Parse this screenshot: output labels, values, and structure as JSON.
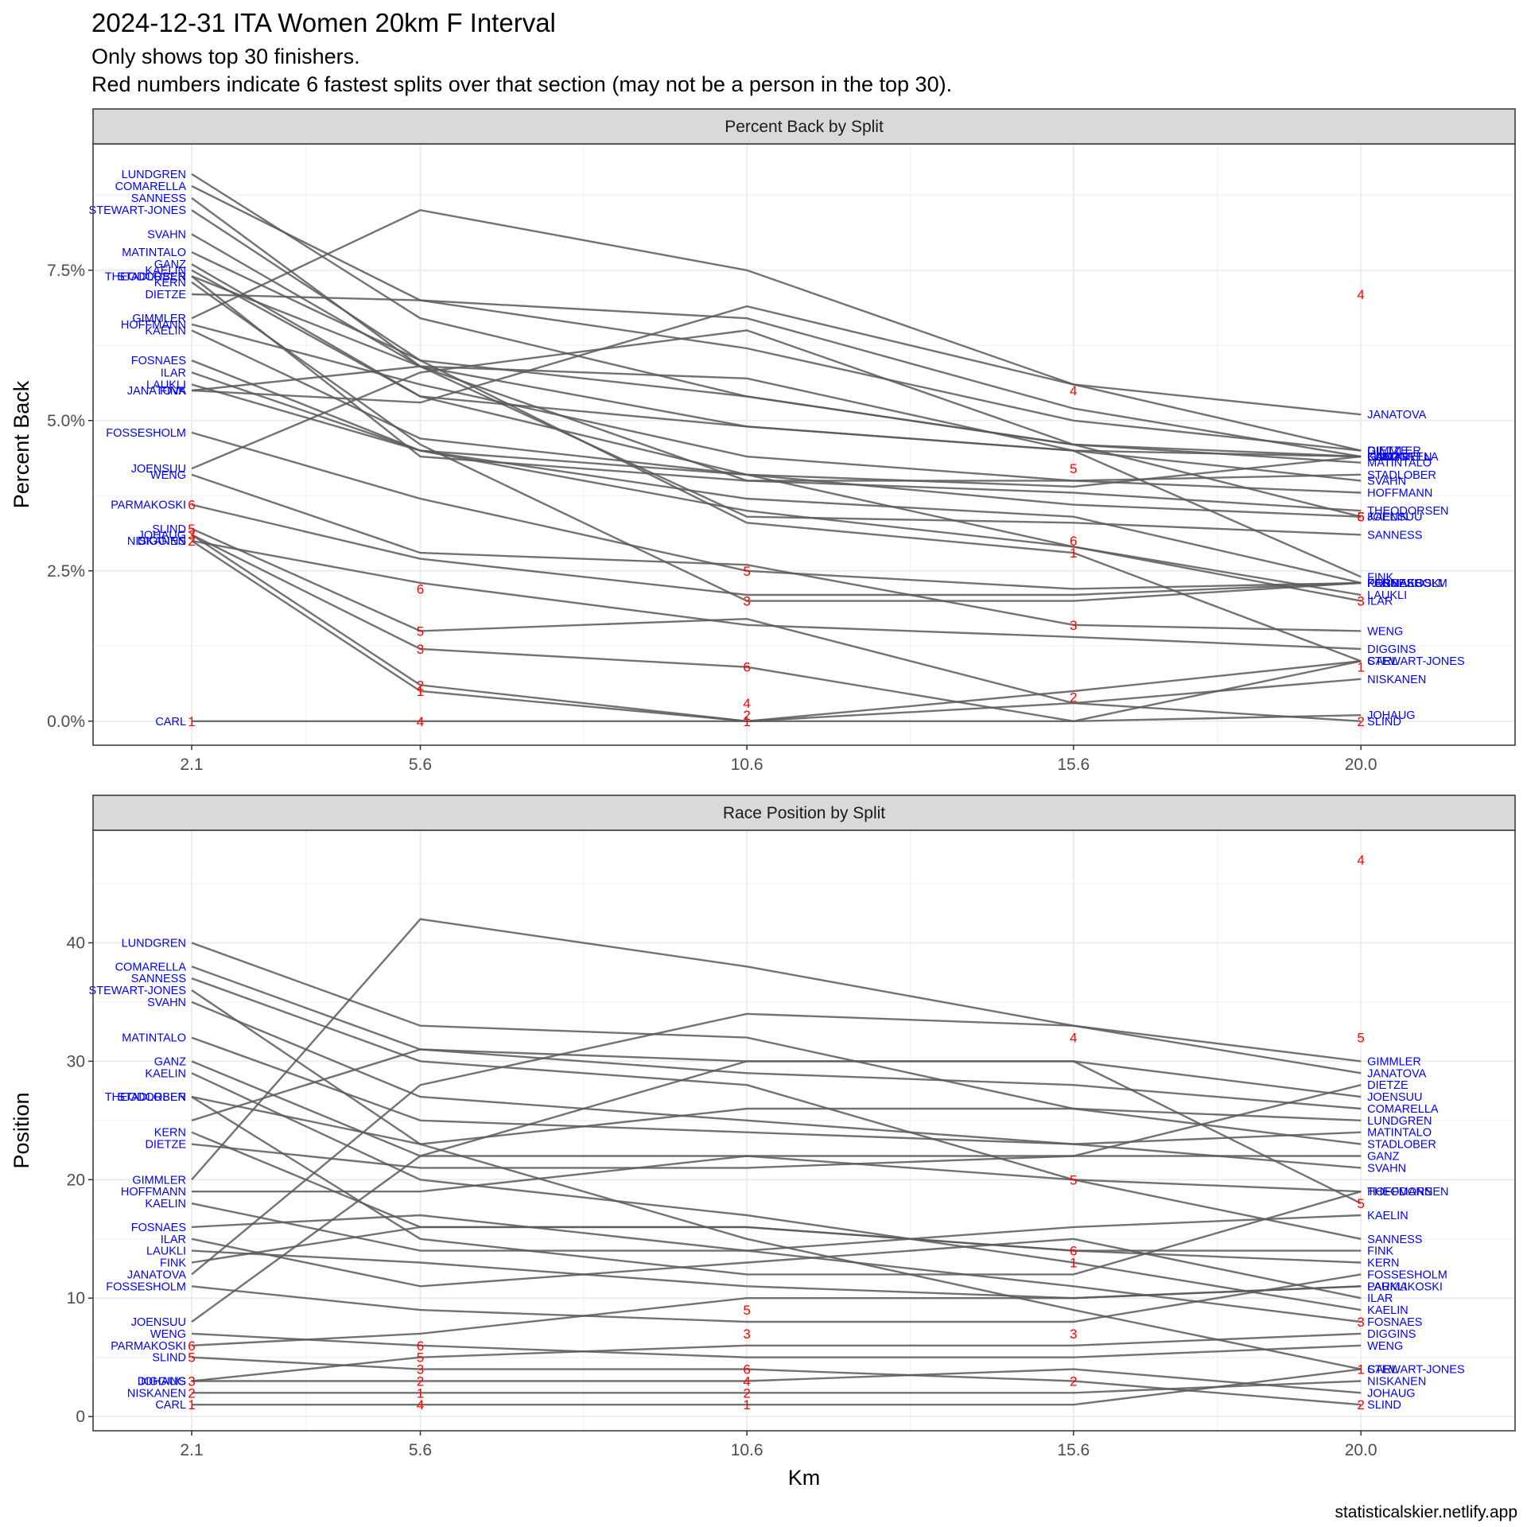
{
  "title": "2024-12-31 ITA Women 20km F Interval",
  "subtitle_lines": [
    "Only shows top 30 finishers.",
    "Red numbers indicate 6 fastest splits over that section (may not be a person in the top 30)."
  ],
  "caption": "statisticalskier.netlify.app",
  "colors": {
    "line": "#595959",
    "name_label": "#0000ff",
    "split_label": "#ff0000",
    "strip_bg": "#d9d9d9",
    "grid": "#ebebeb"
  },
  "chart_data": [
    {
      "type": "line",
      "title": "Percent Back by Split",
      "xlabel": "",
      "ylabel": "Percent Back",
      "x": [
        2.1,
        5.6,
        10.6,
        15.6,
        20.0
      ],
      "x_tick_labels": [
        "2.1",
        "5.6",
        "10.6",
        "15.6",
        "20.0"
      ],
      "y_ticks": [
        0,
        2.5,
        5.0,
        7.5
      ],
      "y_tick_labels": [
        "0.0%",
        "2.5%",
        "5.0%",
        "7.5%"
      ],
      "ylim": [
        -0.4,
        9.6
      ],
      "grid": true,
      "series": [
        {
          "name": "LUNDGREN",
          "values": [
            9.1,
            6.7,
            5.4,
            4.6,
            4.4
          ]
        },
        {
          "name": "COMARELLA",
          "values": [
            8.9,
            7.0,
            6.7,
            5.2,
            4.4
          ]
        },
        {
          "name": "SANNESS",
          "values": [
            8.7,
            5.9,
            3.4,
            3.3,
            3.1
          ]
        },
        {
          "name": "STEWART-JONES",
          "values": [
            8.5,
            6.0,
            3.3,
            2.8,
            1.0
          ]
        },
        {
          "name": "SVAHN",
          "values": [
            8.1,
            5.9,
            4.9,
            4.5,
            4.0
          ]
        },
        {
          "name": "MATINTALO",
          "values": [
            7.8,
            6.0,
            5.4,
            4.6,
            4.3
          ]
        },
        {
          "name": "GANZ",
          "values": [
            7.6,
            5.4,
            4.9,
            4.5,
            4.4
          ]
        },
        {
          "name": "KAELIN",
          "values": [
            7.5,
            5.4,
            4.1,
            3.6,
            3.4
          ]
        },
        {
          "name": "THEODORSEN",
          "values": [
            7.4,
            4.4,
            4.0,
            3.8,
            3.5
          ]
        },
        {
          "name": "STADLOBER",
          "values": [
            7.4,
            5.9,
            4.0,
            4.0,
            4.1
          ]
        },
        {
          "name": "KERN",
          "values": [
            7.3,
            4.6,
            2.0,
            2.0,
            2.3
          ]
        },
        {
          "name": "DIETZE",
          "values": [
            7.1,
            7.0,
            6.2,
            5.0,
            4.5
          ]
        },
        {
          "name": "GIMMLER",
          "values": [
            6.7,
            8.5,
            7.5,
            5.6,
            4.5
          ]
        },
        {
          "name": "HOFFMANN",
          "values": [
            6.6,
            5.6,
            4.4,
            4.0,
            3.8
          ]
        },
        {
          "name": "KAELIN",
          "values": [
            6.5,
            4.7,
            4.1,
            3.9,
            4.4
          ]
        },
        {
          "name": "FOSNAES",
          "values": [
            6.0,
            4.5,
            3.7,
            3.4,
            2.3
          ]
        },
        {
          "name": "ILAR",
          "values": [
            5.8,
            4.5,
            4.1,
            2.9,
            2.0
          ]
        },
        {
          "name": "LAUKLI",
          "values": [
            5.6,
            4.5,
            3.5,
            2.9,
            2.1
          ]
        },
        {
          "name": "FINK",
          "values": [
            5.5,
            5.9,
            5.7,
            4.5,
            2.4
          ]
        },
        {
          "name": "JANATOVA",
          "values": [
            5.5,
            5.3,
            6.9,
            5.6,
            5.1
          ]
        },
        {
          "name": "FOSSESHOLM",
          "values": [
            4.8,
            3.7,
            2.5,
            2.2,
            2.3
          ]
        },
        {
          "name": "JOENSUU",
          "values": [
            4.2,
            5.8,
            6.5,
            4.6,
            3.4
          ]
        },
        {
          "name": "WENG",
          "values": [
            4.1,
            2.8,
            2.6,
            1.6,
            1.5
          ]
        },
        {
          "name": "PARMAKOSKI",
          "values": [
            3.6,
            2.7,
            2.1,
            2.1,
            2.3
          ]
        },
        {
          "name": "SLIND",
          "values": [
            3.2,
            1.5,
            1.7,
            0.3,
            0.0
          ]
        },
        {
          "name": "JOHAUG",
          "values": [
            3.1,
            1.2,
            0.9,
            0.0,
            0.1
          ]
        },
        {
          "name": "DIGGINS",
          "values": [
            3.0,
            2.3,
            1.6,
            1.4,
            1.2
          ]
        },
        {
          "name": "NISKANEN",
          "values": [
            3.0,
            0.5,
            0.0,
            0.3,
            0.7
          ]
        },
        {
          "name": "CARL",
          "values": [
            0.0,
            0.0,
            0.0,
            0.0,
            1.0
          ]
        },
        {
          "name": "",
          "values": [
            3.1,
            0.6,
            0.0,
            0.5,
            1.0
          ]
        }
      ],
      "split_labels": [
        {
          "x": 2.1,
          "y": 0.0,
          "label": "1"
        },
        {
          "x": 2.1,
          "y": 3.2,
          "label": "5"
        },
        {
          "x": 2.1,
          "y": 3.1,
          "label": "3"
        },
        {
          "x": 2.1,
          "y": 3.0,
          "label": "2"
        },
        {
          "x": 2.1,
          "y": 3.6,
          "label": "6"
        },
        {
          "x": 5.6,
          "y": 0.0,
          "label": "4"
        },
        {
          "x": 5.6,
          "y": 0.6,
          "label": "2"
        },
        {
          "x": 5.6,
          "y": 0.5,
          "label": "1"
        },
        {
          "x": 5.6,
          "y": 1.2,
          "label": "3"
        },
        {
          "x": 5.6,
          "y": 1.5,
          "label": "5"
        },
        {
          "x": 5.6,
          "y": 2.2,
          "label": "6"
        },
        {
          "x": 10.6,
          "y": 0.0,
          "label": "1"
        },
        {
          "x": 10.6,
          "y": 0.1,
          "label": "2"
        },
        {
          "x": 10.6,
          "y": 0.3,
          "label": "4"
        },
        {
          "x": 10.6,
          "y": 0.9,
          "label": "6"
        },
        {
          "x": 10.6,
          "y": 2.0,
          "label": "3"
        },
        {
          "x": 10.6,
          "y": 2.5,
          "label": "5"
        },
        {
          "x": 15.6,
          "y": 0.4,
          "label": "2"
        },
        {
          "x": 15.6,
          "y": 1.6,
          "label": "3"
        },
        {
          "x": 15.6,
          "y": 2.8,
          "label": "1"
        },
        {
          "x": 15.6,
          "y": 3.0,
          "label": "6"
        },
        {
          "x": 15.6,
          "y": 4.2,
          "label": "5"
        },
        {
          "x": 15.6,
          "y": 5.5,
          "label": "4"
        },
        {
          "x": 20.0,
          "y": 0.0,
          "label": "2"
        },
        {
          "x": 20.0,
          "y": 0.9,
          "label": "1"
        },
        {
          "x": 20.0,
          "y": 2.0,
          "label": "3"
        },
        {
          "x": 20.0,
          "y": 3.4,
          "label": "6"
        },
        {
          "x": 20.0,
          "y": 3.4,
          "label": "5"
        },
        {
          "x": 20.0,
          "y": 7.1,
          "label": "4"
        }
      ]
    },
    {
      "type": "line",
      "title": "Race Position by Split",
      "xlabel": "Km",
      "ylabel": "Position",
      "x": [
        2.1,
        5.6,
        10.6,
        15.6,
        20.0
      ],
      "x_tick_labels": [
        "2.1",
        "5.6",
        "10.6",
        "15.6",
        "20.0"
      ],
      "y_ticks": [
        0,
        10,
        20,
        30,
        40
      ],
      "y_tick_labels": [
        "0",
        "10",
        "20",
        "30",
        "40"
      ],
      "ylim": [
        -1.2,
        49.5
      ],
      "grid": true,
      "series": [
        {
          "name": "LUNDGREN",
          "values": [
            40,
            33,
            32,
            26,
            25
          ]
        },
        {
          "name": "COMARELLA",
          "values": [
            38,
            31,
            29,
            28,
            26
          ]
        },
        {
          "name": "SANNESS",
          "values": [
            37,
            30,
            28,
            20,
            15
          ]
        },
        {
          "name": "STEWART-JONES",
          "values": [
            36,
            23,
            15,
            9,
            4
          ]
        },
        {
          "name": "SVAHN",
          "values": [
            35,
            27,
            25,
            23,
            21
          ]
        },
        {
          "name": "MATINTALO",
          "values": [
            32,
            25,
            24,
            23,
            24
          ]
        },
        {
          "name": "GANZ",
          "values": [
            30,
            22,
            22,
            22,
            22
          ]
        },
        {
          "name": "KAELIN",
          "values": [
            29,
            20,
            17,
            13,
            9
          ]
        },
        {
          "name": "THEODORSEN",
          "values": [
            27,
            15,
            12,
            12,
            19
          ]
        },
        {
          "name": "STADLOBER",
          "values": [
            27,
            23,
            26,
            26,
            23
          ]
        },
        {
          "name": "KERN",
          "values": [
            24,
            16,
            16,
            14,
            13
          ]
        },
        {
          "name": "DIETZE",
          "values": [
            23,
            21,
            21,
            22,
            28
          ]
        },
        {
          "name": "GIMMLER",
          "values": [
            20,
            42,
            38,
            33,
            30
          ]
        },
        {
          "name": "HOFFMANN",
          "values": [
            19,
            19,
            22,
            20,
            19
          ]
        },
        {
          "name": "KAELIN",
          "values": [
            18,
            14,
            14,
            16,
            17
          ]
        },
        {
          "name": "FOSNAES",
          "values": [
            16,
            17,
            14,
            11,
            8
          ]
        },
        {
          "name": "ILAR",
          "values": [
            15,
            11,
            13,
            15,
            10
          ]
        },
        {
          "name": "LAUKLI",
          "values": [
            14,
            13,
            11,
            10,
            11
          ]
        },
        {
          "name": "FINK",
          "values": [
            13,
            16,
            16,
            14,
            14
          ]
        },
        {
          "name": "JANATOVA",
          "values": [
            12,
            28,
            34,
            33,
            29
          ]
        },
        {
          "name": "FOSSESHOLM",
          "values": [
            11,
            9,
            8,
            8,
            12
          ]
        },
        {
          "name": "JOENSUU",
          "values": [
            8,
            22,
            30,
            30,
            27
          ]
        },
        {
          "name": "WENG",
          "values": [
            7,
            6,
            5,
            5,
            6
          ]
        },
        {
          "name": "PARMAKOSKI",
          "values": [
            6,
            7,
            10,
            10,
            11
          ]
        },
        {
          "name": "SLIND",
          "values": [
            5,
            4,
            4,
            3,
            1
          ]
        },
        {
          "name": "JOHAUG",
          "values": [
            3,
            3,
            3,
            4,
            2
          ]
        },
        {
          "name": "DIGGINS",
          "values": [
            3,
            5,
            6,
            6,
            7
          ]
        },
        {
          "name": "NISKANEN",
          "values": [
            2,
            2,
            2,
            2,
            3
          ]
        },
        {
          "name": "CARL",
          "values": [
            1,
            1,
            1,
            1,
            4
          ]
        },
        {
          "name": "",
          "values": [
            25,
            31,
            30,
            30,
            18
          ]
        }
      ],
      "split_labels": [
        {
          "x": 2.1,
          "y": 1,
          "label": "1"
        },
        {
          "x": 2.1,
          "y": 2,
          "label": "2"
        },
        {
          "x": 2.1,
          "y": 3,
          "label": "3"
        },
        {
          "x": 2.1,
          "y": 5,
          "label": "5"
        },
        {
          "x": 2.1,
          "y": 6,
          "label": "6"
        },
        {
          "x": 5.6,
          "y": 1,
          "label": "4"
        },
        {
          "x": 5.6,
          "y": 2,
          "label": "1"
        },
        {
          "x": 5.6,
          "y": 3,
          "label": "2"
        },
        {
          "x": 5.6,
          "y": 4,
          "label": "3"
        },
        {
          "x": 5.6,
          "y": 5,
          "label": "5"
        },
        {
          "x": 5.6,
          "y": 6,
          "label": "6"
        },
        {
          "x": 10.6,
          "y": 1,
          "label": "1"
        },
        {
          "x": 10.6,
          "y": 2,
          "label": "2"
        },
        {
          "x": 10.6,
          "y": 3,
          "label": "4"
        },
        {
          "x": 10.6,
          "y": 4,
          "label": "6"
        },
        {
          "x": 10.6,
          "y": 7,
          "label": "3"
        },
        {
          "x": 10.6,
          "y": 9,
          "label": "5"
        },
        {
          "x": 15.6,
          "y": 3,
          "label": "2"
        },
        {
          "x": 15.6,
          "y": 7,
          "label": "3"
        },
        {
          "x": 15.6,
          "y": 13,
          "label": "1"
        },
        {
          "x": 15.6,
          "y": 14,
          "label": "6"
        },
        {
          "x": 15.6,
          "y": 20,
          "label": "5"
        },
        {
          "x": 15.6,
          "y": 32,
          "label": "4"
        },
        {
          "x": 20.0,
          "y": 1,
          "label": "2"
        },
        {
          "x": 20.0,
          "y": 4,
          "label": "1"
        },
        {
          "x": 20.0,
          "y": 8,
          "label": "3"
        },
        {
          "x": 20.0,
          "y": 18,
          "label": "5"
        },
        {
          "x": 20.0,
          "y": 32,
          "label": "5"
        },
        {
          "x": 20.0,
          "y": 47,
          "label": "4"
        }
      ]
    }
  ]
}
